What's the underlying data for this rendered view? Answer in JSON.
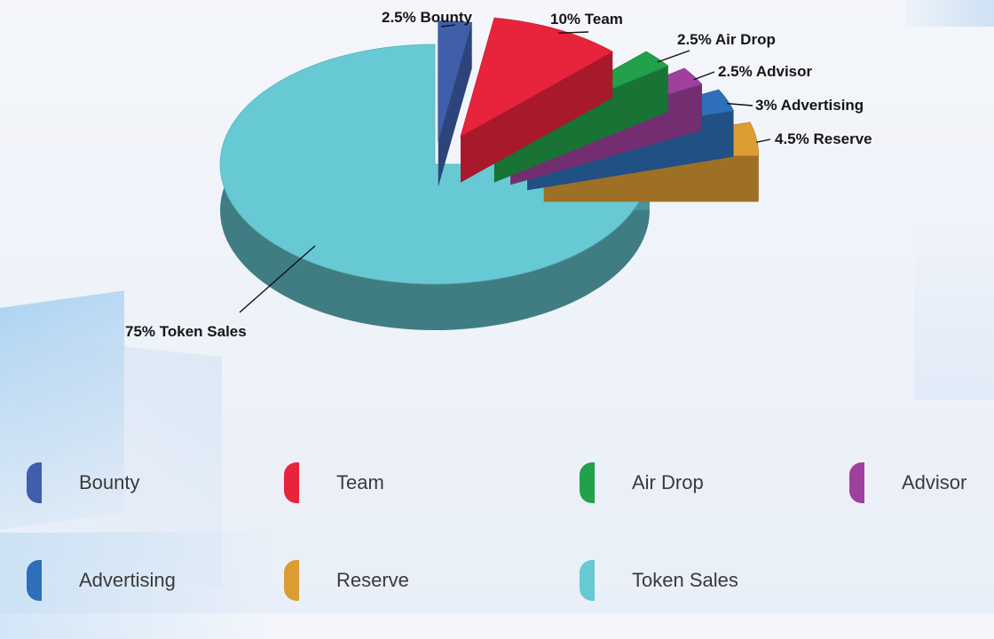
{
  "chart_data": {
    "type": "pie",
    "style": "3d-exploded",
    "slices": [
      {
        "name": "Bounty",
        "value": 2.5,
        "label": "2.5% Bounty",
        "color": "#3f5fab"
      },
      {
        "name": "Team",
        "value": 10,
        "label": "10% Team",
        "color": "#e8233c"
      },
      {
        "name": "Air Drop",
        "value": 2.5,
        "label": "2.5% Air Drop",
        "color": "#22a04a"
      },
      {
        "name": "Advisor",
        "value": 2.5,
        "label": "2.5% Advisor",
        "color": "#a0409e"
      },
      {
        "name": "Advertising",
        "value": 3,
        "label": "3% Advertising",
        "color": "#2d6fb8"
      },
      {
        "name": "Reserve",
        "value": 4.5,
        "label": "4.5% Reserve",
        "color": "#dc9c34"
      },
      {
        "name": "Token Sales",
        "value": 75,
        "label": "75% Token Sales",
        "color": "#67c9d4"
      }
    ],
    "legend": {
      "placement": "bottom",
      "items": [
        {
          "label": "Bounty",
          "color": "#3f5fab"
        },
        {
          "label": "Team",
          "color": "#e8233c"
        },
        {
          "label": "Air Drop",
          "color": "#22a04a"
        },
        {
          "label": "Advisor",
          "color": "#a0409e"
        },
        {
          "label": "Advertising",
          "color": "#2d6fb8"
        },
        {
          "label": "Reserve",
          "color": "#dc9c34"
        },
        {
          "label": "Token Sales",
          "color": "#67c9d4"
        }
      ]
    }
  }
}
